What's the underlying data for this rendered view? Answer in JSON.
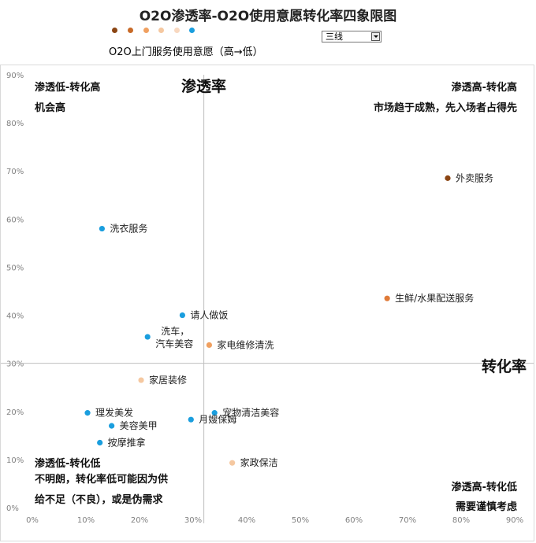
{
  "title": "O2O渗透率-O2O使用意愿转化率四象限图",
  "legend": {
    "colors": [
      "#8b4513",
      "#c86a28",
      "#f0a060",
      "#f5c8a0",
      "#f8d8c0",
      "#1a9ede"
    ],
    "label": "O2O上门服务使用意愿（高→低）"
  },
  "dropdown": {
    "selected": "三线"
  },
  "axes": {
    "y_name": "渗透率",
    "x_name": "转化率"
  },
  "quadrants": {
    "top_left": {
      "title": "渗透低-转化高",
      "desc": "机会高"
    },
    "top_right": {
      "title": "渗透高-转化高",
      "desc": "市场趋于成熟，先入场者占得先"
    },
    "bottom_left": {
      "title": "渗透低-转化低",
      "desc_lines": [
        "不明朗，转化率低可能因为供",
        "给不足（不良），或是伪需求"
      ]
    },
    "bottom_right": {
      "title": "渗透高-转化低",
      "desc": "需要谨慎考虑"
    }
  },
  "chart_data": {
    "type": "scatter",
    "title": "O2O渗透率-O2O使用意愿转化率四象限图",
    "xlabel": "转化率",
    "ylabel": "渗透率",
    "xlim": [
      0,
      0.9
    ],
    "ylim": [
      0,
      0.9
    ],
    "x_ticks": [
      "0%",
      "10%",
      "20%",
      "30%",
      "40%",
      "50%",
      "60%",
      "70%",
      "80%",
      "90%"
    ],
    "y_ticks": [
      "0%",
      "10%",
      "20%",
      "30%",
      "40%",
      "50%",
      "60%",
      "70%",
      "80%",
      "90%"
    ],
    "divider": {
      "x": 0.32,
      "y": 0.3
    },
    "points": [
      {
        "label": "外卖服务",
        "x": 0.775,
        "y": 0.685,
        "color": "#8b4513"
      },
      {
        "label": "洗衣服务",
        "x": 0.13,
        "y": 0.58,
        "color": "#1a9ede"
      },
      {
        "label": "生鲜/水果配送服务",
        "x": 0.662,
        "y": 0.435,
        "color": "#e07b39"
      },
      {
        "label": "请人做饭",
        "x": 0.28,
        "y": 0.4,
        "color": "#1a9ede"
      },
      {
        "label": "洗车，",
        "label2": "汽车美容",
        "x": 0.215,
        "y": 0.355,
        "color": "#1a9ede"
      },
      {
        "label": "家电维修清洗",
        "x": 0.33,
        "y": 0.338,
        "color": "#f0a060"
      },
      {
        "label": "家居装修",
        "x": 0.203,
        "y": 0.265,
        "color": "#f5c8a0"
      },
      {
        "label": "理发美发",
        "x": 0.103,
        "y": 0.197,
        "color": "#1a9ede"
      },
      {
        "label": "宠物清洁美容",
        "x": 0.34,
        "y": 0.197,
        "color": "#1a9ede"
      },
      {
        "label": "月嫂保姆",
        "x": 0.296,
        "y": 0.183,
        "color": "#1a9ede"
      },
      {
        "label": "美容美甲",
        "x": 0.148,
        "y": 0.17,
        "color": "#1a9ede"
      },
      {
        "label": "按摩推拿",
        "x": 0.126,
        "y": 0.135,
        "color": "#1a9ede"
      },
      {
        "label": "家政保洁",
        "x": 0.373,
        "y": 0.093,
        "color": "#f5c8a0"
      }
    ]
  }
}
